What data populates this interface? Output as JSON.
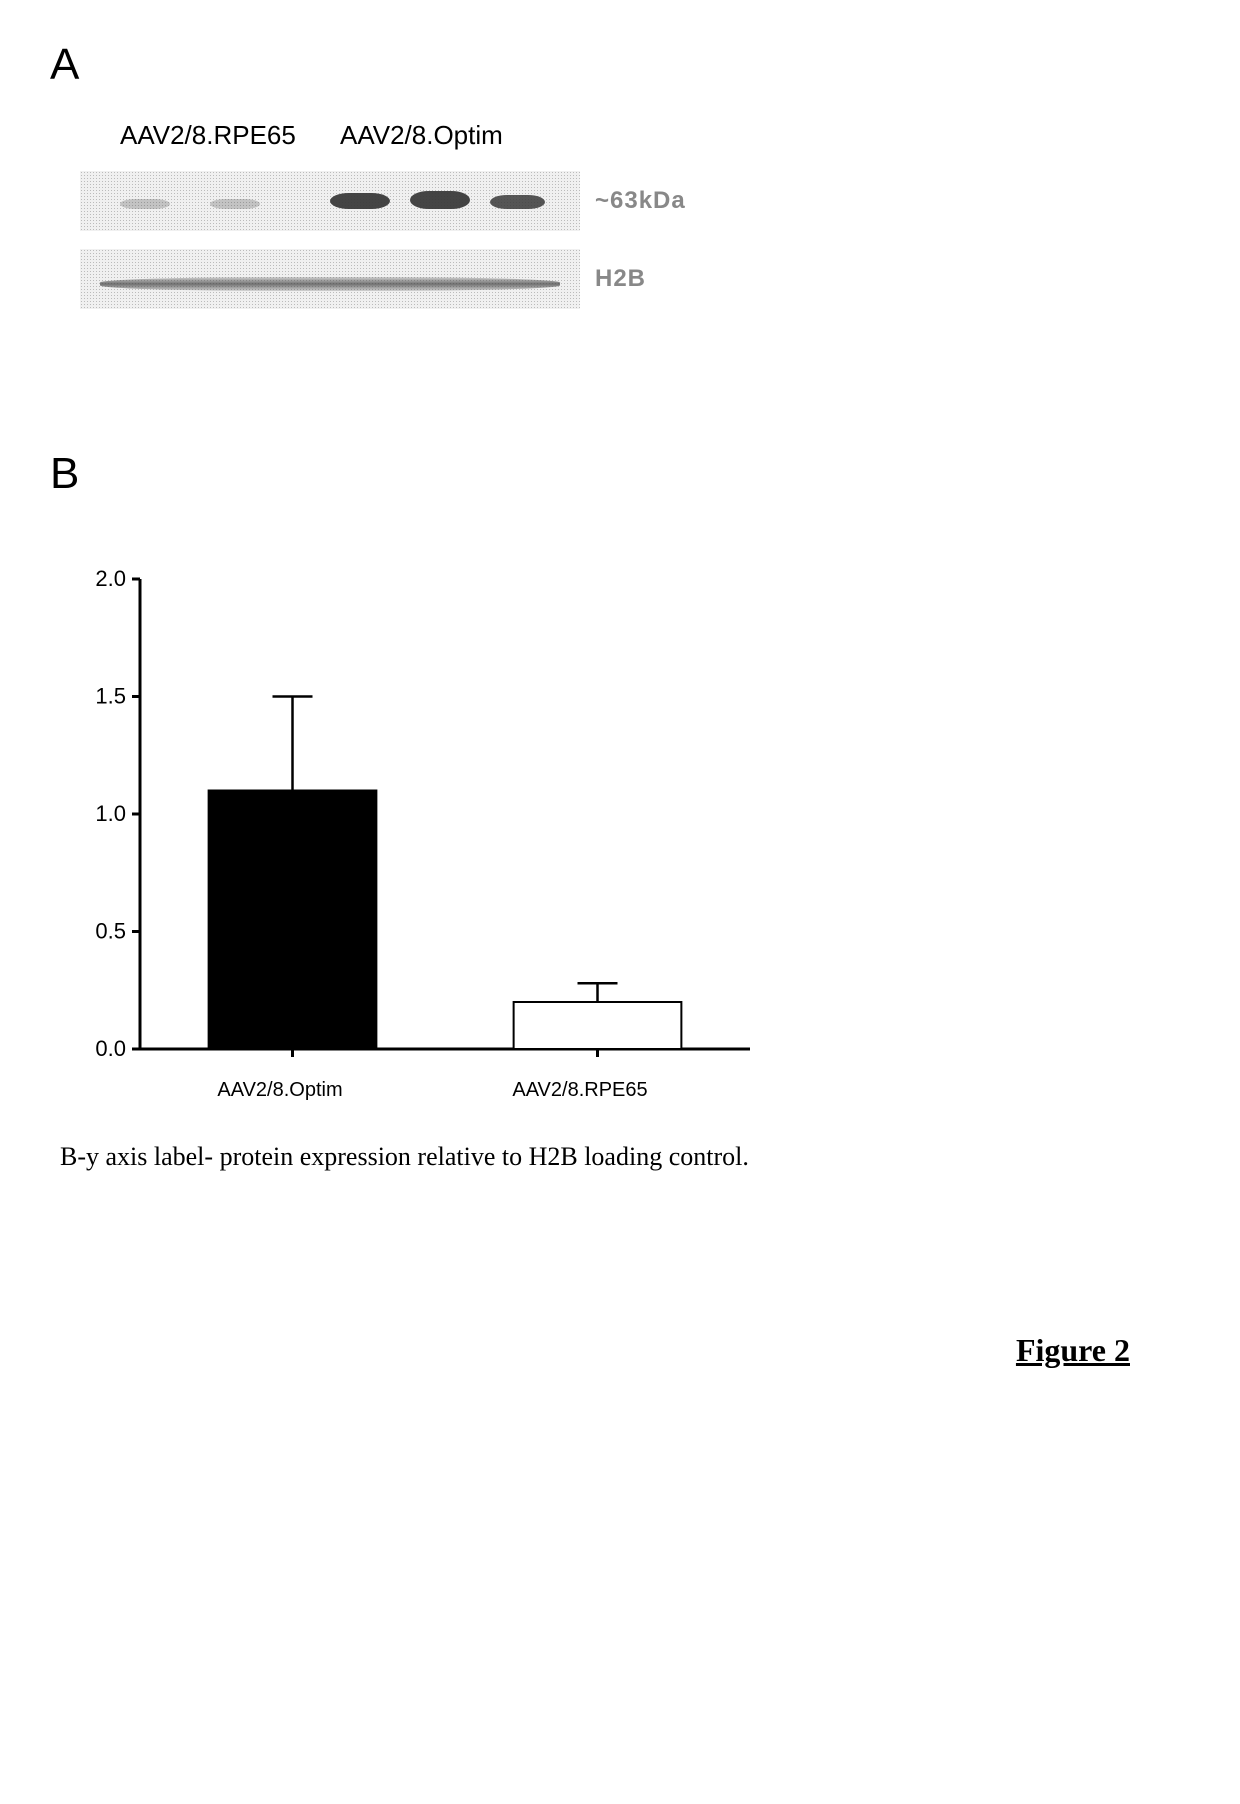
{
  "panelA": {
    "label": "A",
    "header_left": "AAV2/8.RPE65",
    "header_right": "AAV2/8.Optim",
    "blot1_label": "~63kDa",
    "blot2_label": "H2B"
  },
  "panelB": {
    "label": "B",
    "chart": {
      "type": "bar",
      "ylim": [
        0.0,
        2.0
      ],
      "ytick_step": 0.5,
      "yticks": [
        "0.0",
        "0.5",
        "1.0",
        "1.5",
        "2.0"
      ],
      "bars": [
        {
          "label": "AAV2/8.Optim",
          "value": 1.1,
          "error": 0.4,
          "fill": "#000000"
        },
        {
          "label": "AAV2/8.RPE65",
          "value": 0.2,
          "error": 0.08,
          "fill": "#ffffff"
        }
      ],
      "axis_color": "#000000",
      "background_color": "#ffffff",
      "tick_fontsize": 22,
      "xlabel_fontsize": 20,
      "bar_width_ratio": 0.55,
      "axis_linewidth": 3,
      "error_linewidth": 2.5,
      "error_cap_width": 40
    }
  },
  "caption": "B-y axis label- protein expression relative to H2B loading control.",
  "figure_label": "Figure 2"
}
